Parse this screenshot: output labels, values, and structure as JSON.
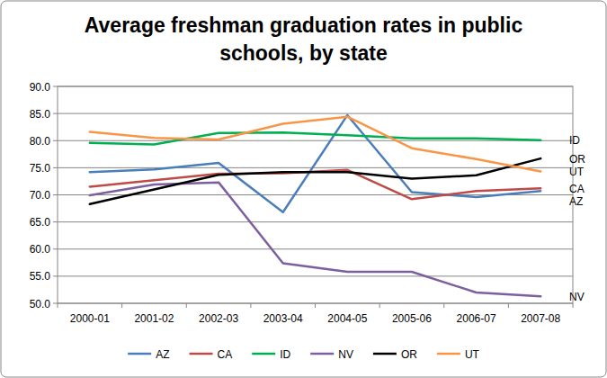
{
  "chart_data": {
    "type": "line",
    "title": "Average freshman graduation rates in public schools, by state",
    "categories": [
      "2000-01",
      "2001-02",
      "2002-03",
      "2003-04",
      "2004-05",
      "2005-06",
      "2006-07",
      "2007-08"
    ],
    "series": [
      {
        "name": "AZ",
        "color": "#4a7ebb",
        "values": [
          74.2,
          74.7,
          75.9,
          66.8,
          84.7,
          70.5,
          69.6,
          70.7
        ]
      },
      {
        "name": "CA",
        "color": "#be4b48",
        "values": [
          71.5,
          72.7,
          73.9,
          74.0,
          74.6,
          69.2,
          70.7,
          71.2
        ]
      },
      {
        "name": "ID",
        "color": "#00b050",
        "values": [
          79.6,
          79.3,
          81.4,
          81.5,
          81.0,
          80.4,
          80.4,
          80.1
        ]
      },
      {
        "name": "NV",
        "color": "#7d5fa0",
        "values": [
          69.9,
          71.9,
          72.3,
          57.4,
          55.8,
          55.8,
          52.0,
          51.3
        ]
      },
      {
        "name": "OR",
        "color": "#000000",
        "values": [
          68.3,
          71.0,
          73.7,
          74.2,
          74.2,
          73.0,
          73.6,
          76.7
        ]
      },
      {
        "name": "UT",
        "color": "#f79646",
        "values": [
          81.6,
          80.5,
          80.2,
          83.1,
          84.4,
          78.6,
          76.6,
          74.3
        ]
      }
    ],
    "ylim": [
      50,
      90
    ],
    "yticks": [
      {
        "value": 50,
        "label": "50.0"
      },
      {
        "value": 55,
        "label": "55.0"
      },
      {
        "value": 60,
        "label": "60.0"
      },
      {
        "value": 65,
        "label": "65.0"
      },
      {
        "value": 70,
        "label": "70.0"
      },
      {
        "value": 75,
        "label": "75.0"
      },
      {
        "value": 80,
        "label": "80.0"
      },
      {
        "value": 85,
        "label": "85.0"
      },
      {
        "value": 90,
        "label": "90.0"
      }
    ],
    "grid": true,
    "legend": "bottom"
  }
}
